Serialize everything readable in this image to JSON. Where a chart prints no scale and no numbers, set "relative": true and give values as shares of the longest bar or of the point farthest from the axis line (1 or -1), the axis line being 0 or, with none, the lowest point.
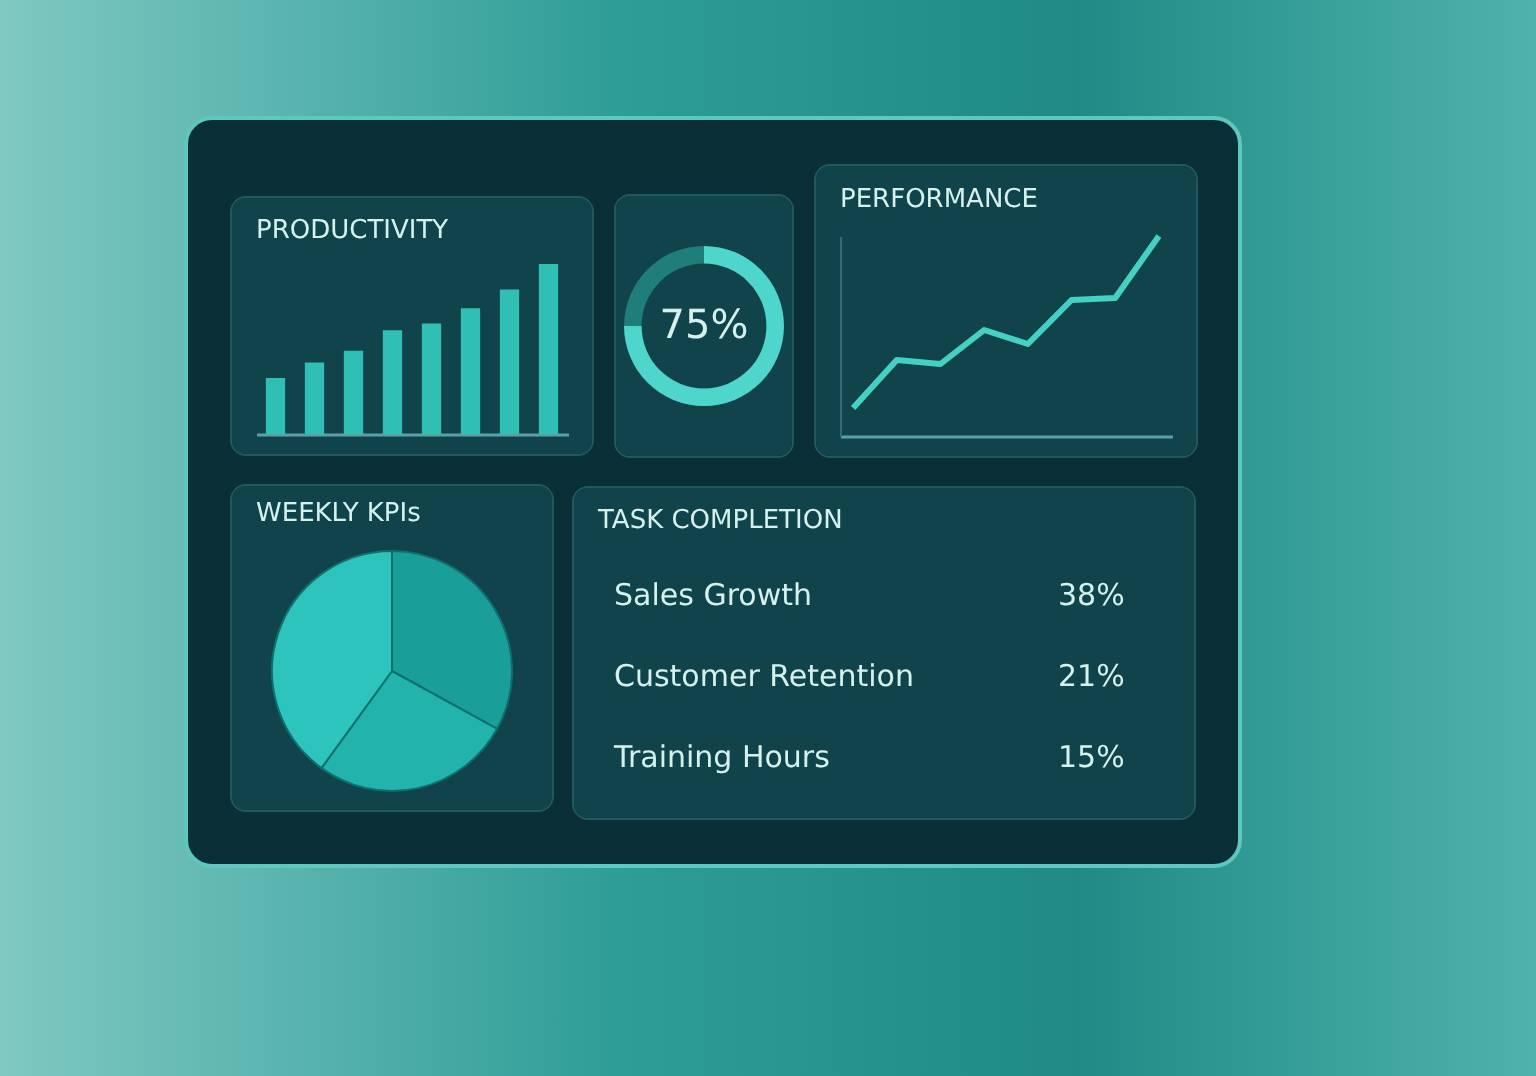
{
  "chart_data": [
    {
      "type": "bar",
      "title": "PRODUCTIVITY",
      "categories": [
        null,
        null,
        null,
        null,
        null,
        null,
        null,
        null
      ],
      "values": [
        0.33,
        0.42,
        0.49,
        0.61,
        0.65,
        0.74,
        0.85,
        1
      ],
      "color": "#2fbfb5",
      "relative": true
    },
    {
      "type": "donut",
      "categories": [
        null,
        null
      ],
      "values": [
        75,
        25
      ],
      "colors": [
        "#4fd6cc",
        "#1f7d7a"
      ],
      "value_labels": [
        "75%",
        null
      ]
    },
    {
      "type": "line",
      "title": "PERFORMANCE",
      "categories": [
        null,
        null,
        null,
        null,
        null,
        null,
        null,
        null
      ],
      "series": [
        {
          "color": "#45d0c4",
          "values": [
            0.14,
            0.38,
            0.36,
            0.53,
            0.46,
            0.68,
            0.69,
            1
          ]
        }
      ],
      "relative": true
    },
    {
      "type": "pie",
      "title": "WEEKLY KPIs",
      "categories": [
        null,
        null,
        null
      ],
      "values": [
        33,
        27,
        40
      ],
      "colors": [
        "#1a9e9a",
        "#22b3ad",
        "#2cc4bc"
      ]
    },
    {
      "type": "other",
      "title": "TASK COMPLETION",
      "categories": [
        "Sales Growth",
        "Customer Retention",
        "Training Hours"
      ],
      "values": [
        38,
        21,
        15
      ],
      "value_labels": [
        "38%",
        "21%",
        "15%"
      ]
    }
  ]
}
